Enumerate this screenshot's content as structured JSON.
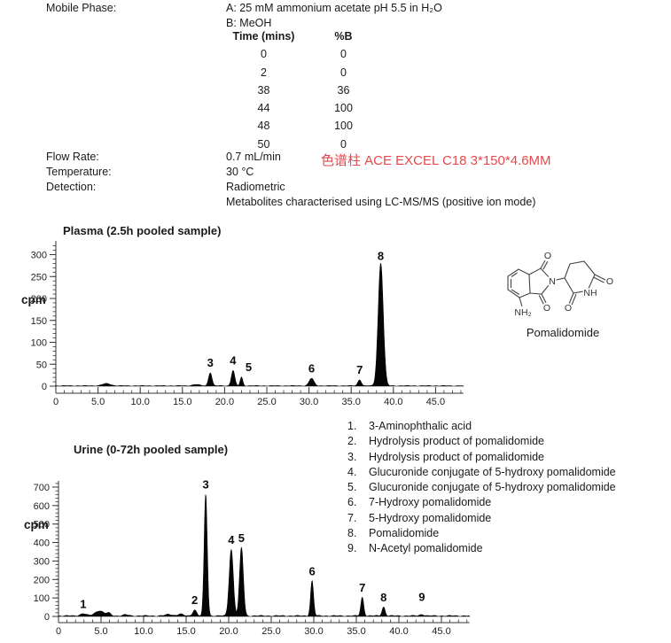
{
  "method": {
    "mobile_phase_label": "Mobile Phase:",
    "mobile_phase_a": "A: 25 mM ammonium acetate pH 5.5 in H₂O",
    "mobile_phase_b": "B: MeOH",
    "gradient": {
      "headers": [
        "Time (mins)",
        "%B"
      ],
      "rows": [
        [
          "0",
          "0"
        ],
        [
          "2",
          "0"
        ],
        [
          "38",
          "36"
        ],
        [
          "44",
          "100"
        ],
        [
          "48",
          "100"
        ],
        [
          "50",
          "0"
        ]
      ]
    },
    "flow_rate_label": "Flow Rate:",
    "flow_rate": "0.7 mL/min",
    "temperature_label": "Temperature:",
    "temperature": "30 °C",
    "detection_label": "Detection:",
    "detection": "Radiometric",
    "detection_note": "Metabolites characterised using LC-MS/MS (positive ion mode)",
    "column_note": "色谱柱 ACE EXCEL C18 3*150*4.6MM",
    "column_note_color": "#e5484d"
  },
  "structure": {
    "caption": "Pomalidomide",
    "atoms": {
      "o1": "O",
      "o2": "O",
      "n": "N",
      "o3": "O",
      "o4": "O",
      "nh": "NH",
      "nh2": "NH₂"
    }
  },
  "metabolites": [
    "3-Aminophthalic acid",
    "Hydrolysis product of pomalidomide",
    "Hydrolysis product of pomalidomide",
    "Glucuronide conjugate of 5-hydroxy pomalidomide",
    "Glucuronide conjugate of 5-hydroxy pomalidomide",
    "7-Hydroxy pomalidomide",
    "5-Hydroxy pomalidomide",
    "Pomalidomide",
    "N-Acetyl pomalidomide"
  ],
  "chart_data": [
    {
      "type": "line",
      "title": "Plasma (2.5h pooled sample)",
      "ylabel": "cpm",
      "xlabel": "",
      "xlim": [
        0,
        48.3
      ],
      "ylim": [
        0,
        300
      ],
      "x_major": 5,
      "x_minor": 1,
      "x_minor_max": 48,
      "y_major": 50,
      "y_minor": 10,
      "y_minor_max": 320,
      "x_tick_labels": [
        "0",
        "5.0",
        "10.0",
        "15.0",
        "20.0",
        "25.0",
        "30.0",
        "35.0",
        "40.0",
        "45.0"
      ],
      "y_tick_labels": [
        "0",
        "50",
        "100",
        "150",
        "200",
        "250",
        "300"
      ],
      "grid": false,
      "noise_amp": 1.5,
      "peaks": [
        {
          "t": 6.0,
          "cpm": 5,
          "sigma": 0.5
        },
        {
          "t": 16.6,
          "cpm": 3,
          "sigma": 0.4
        },
        {
          "t": 18.3,
          "cpm": 30,
          "sigma": 0.2,
          "label": "3"
        },
        {
          "t": 21.0,
          "cpm": 35,
          "sigma": 0.2,
          "label": "4"
        },
        {
          "t": 22.0,
          "cpm": 20,
          "sigma": 0.15,
          "label": "5",
          "dx": 8
        },
        {
          "t": 30.3,
          "cpm": 17,
          "sigma": 0.28,
          "label": "6"
        },
        {
          "t": 36.0,
          "cpm": 14,
          "sigma": 0.2,
          "label": "7"
        },
        {
          "t": 38.5,
          "cpm": 280,
          "sigma": 0.3,
          "label": "8",
          "dy": 3
        }
      ]
    },
    {
      "type": "line",
      "title": "Urine (0-72h pooled sample)",
      "ylabel": "cpm",
      "xlabel": "",
      "xlim": [
        0,
        48.3
      ],
      "ylim": [
        0,
        700
      ],
      "x_major": 5,
      "x_minor": 1,
      "x_minor_max": 48,
      "y_major": 100,
      "y_minor": 20,
      "y_minor_max": 720,
      "x_tick_labels": [
        "0",
        "5.0",
        "10.0",
        "15.0",
        "20.0",
        "25.0",
        "30.0",
        "35.0",
        "40.0",
        "45.0"
      ],
      "y_tick_labels": [
        "0",
        "100",
        "200",
        "300",
        "400",
        "500",
        "600",
        "700"
      ],
      "grid": false,
      "noise_amp": 6,
      "peaks": [
        {
          "t": 2.9,
          "cpm": 12,
          "sigma": 0.35,
          "label": "1"
        },
        {
          "t": 4.8,
          "cpm": 28,
          "sigma": 0.5
        },
        {
          "t": 5.9,
          "cpm": 14,
          "sigma": 0.25
        },
        {
          "t": 7.9,
          "cpm": 6,
          "sigma": 0.3
        },
        {
          "t": 13.0,
          "cpm": 8,
          "sigma": 0.4
        },
        {
          "t": 14.3,
          "cpm": 10,
          "sigma": 0.3
        },
        {
          "t": 16.0,
          "cpm": 33,
          "sigma": 0.22,
          "label": "2"
        },
        {
          "t": 17.3,
          "cpm": 660,
          "sigma": 0.18,
          "label": "3"
        },
        {
          "t": 20.3,
          "cpm": 360,
          "sigma": 0.24,
          "label": "4"
        },
        {
          "t": 21.5,
          "cpm": 370,
          "sigma": 0.22,
          "label": "5"
        },
        {
          "t": 29.8,
          "cpm": 190,
          "sigma": 0.17,
          "label": "6"
        },
        {
          "t": 35.7,
          "cpm": 100,
          "sigma": 0.17,
          "label": "7"
        },
        {
          "t": 38.2,
          "cpm": 48,
          "sigma": 0.18,
          "label": "8"
        },
        {
          "t": 42.7,
          "cpm": 8,
          "sigma": 0.25,
          "label": "9",
          "dy": -9
        }
      ]
    }
  ]
}
